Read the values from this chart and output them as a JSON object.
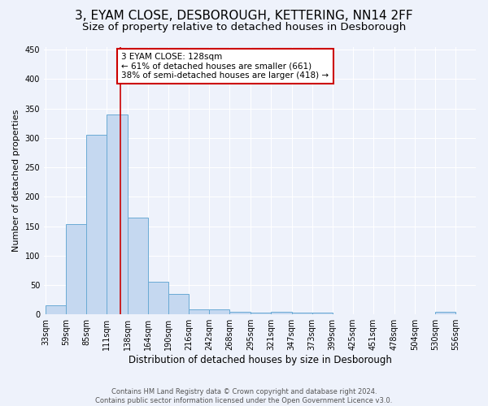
{
  "title": "3, EYAM CLOSE, DESBOROUGH, KETTERING, NN14 2FF",
  "subtitle": "Size of property relative to detached houses in Desborough",
  "xlabel": "Distribution of detached houses by size in Desborough",
  "ylabel": "Number of detached properties",
  "footer_line1": "Contains HM Land Registry data © Crown copyright and database right 2024.",
  "footer_line2": "Contains public sector information licensed under the Open Government Licence v3.0.",
  "bin_edges": [
    33,
    59,
    85,
    111,
    138,
    164,
    190,
    216,
    242,
    268,
    295,
    321,
    347,
    373,
    399,
    425,
    451,
    478,
    504,
    530,
    556
  ],
  "bar_heights": [
    15,
    153,
    305,
    340,
    165,
    55,
    35,
    9,
    9,
    5,
    3,
    5,
    3,
    3,
    0,
    0,
    0,
    0,
    0,
    5,
    0
  ],
  "bar_color": "#c5d8f0",
  "bar_edge_color": "#6aaad4",
  "red_line_x": 128,
  "annotation_text": "3 EYAM CLOSE: 128sqm\n← 61% of detached houses are smaller (661)\n38% of semi-detached houses are larger (418) →",
  "annotation_box_color": "white",
  "annotation_border_color": "#cc0000",
  "ylim": [
    0,
    455
  ],
  "yticks": [
    0,
    50,
    100,
    150,
    200,
    250,
    300,
    350,
    400,
    450
  ],
  "background_color": "#eef2fb",
  "plot_bg_color": "#eef2fb",
  "grid_color": "white",
  "title_fontsize": 11,
  "subtitle_fontsize": 9.5,
  "xlabel_fontsize": 8.5,
  "ylabel_fontsize": 8,
  "tick_fontsize": 7,
  "footer_fontsize": 6,
  "annotation_fontsize": 7.5
}
